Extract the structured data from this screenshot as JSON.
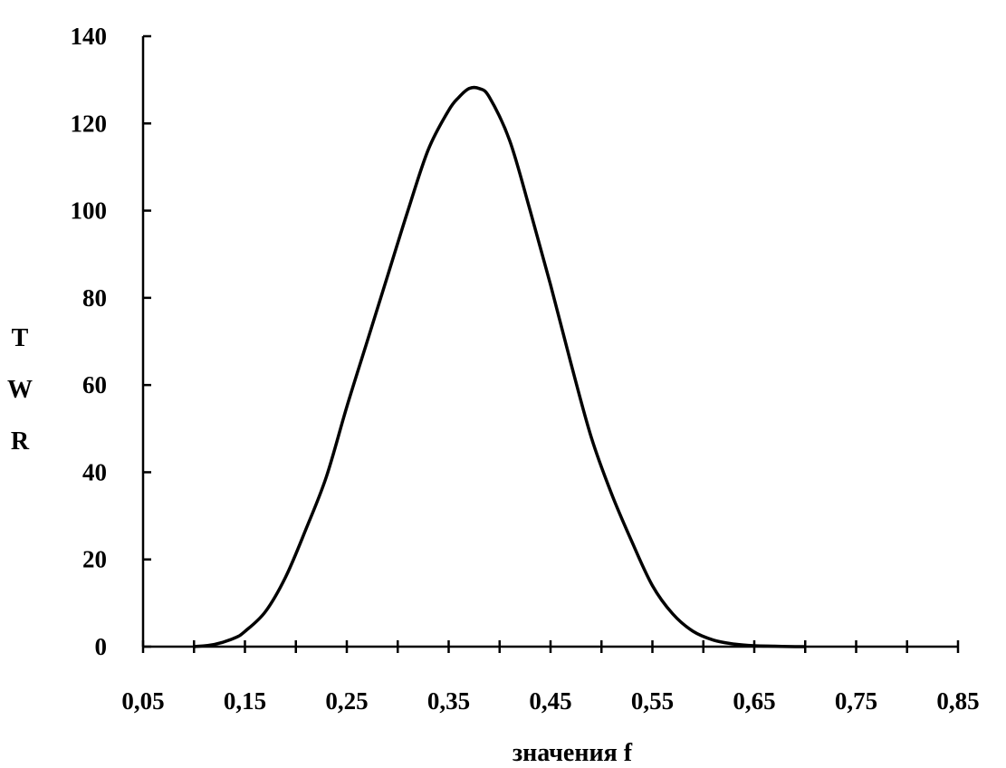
{
  "chart_data": {
    "type": "line",
    "title": "",
    "xlabel": "значения f",
    "ylabel": [
      "T",
      "W",
      "R"
    ],
    "xlim": [
      0.05,
      0.85
    ],
    "ylim": [
      0,
      140
    ],
    "x_ticks": [
      0.05,
      0.1,
      0.15,
      0.2,
      0.25,
      0.3,
      0.35,
      0.4,
      0.45,
      0.5,
      0.55,
      0.6,
      0.65,
      0.7,
      0.75,
      0.8,
      0.85
    ],
    "x_tick_labels": [
      "0,05",
      "0,15",
      "0,25",
      "0,35",
      "0,45",
      "0,55",
      "0,65",
      "0,75",
      "0,85"
    ],
    "y_ticks": [
      0,
      20,
      40,
      60,
      80,
      100,
      120,
      140
    ],
    "y_tick_labels": [
      "0",
      "20",
      "40",
      "60",
      "80",
      "100",
      "120",
      "140"
    ],
    "grid": false,
    "legend": "none",
    "colors": {
      "line": "#000000",
      "axis": "#000000"
    },
    "series": [
      {
        "x": [
          0.1,
          0.12,
          0.14,
          0.15,
          0.17,
          0.19,
          0.21,
          0.23,
          0.25,
          0.27,
          0.29,
          0.31,
          0.33,
          0.35,
          0.36,
          0.37,
          0.38,
          0.39,
          0.41,
          0.43,
          0.45,
          0.47,
          0.49,
          0.51,
          0.53,
          0.55,
          0.57,
          0.59,
          0.61,
          0.63,
          0.65,
          0.67,
          0.69,
          0.7
        ],
        "y": [
          0,
          0.5,
          2,
          3.5,
          8,
          16,
          27,
          39,
          55,
          70,
          85,
          100,
          114,
          123,
          126,
          128,
          128,
          126,
          116,
          100,
          83,
          65,
          48,
          35,
          24,
          14,
          7.5,
          3.5,
          1.5,
          0.6,
          0.2,
          0.1,
          0,
          0
        ]
      }
    ]
  }
}
